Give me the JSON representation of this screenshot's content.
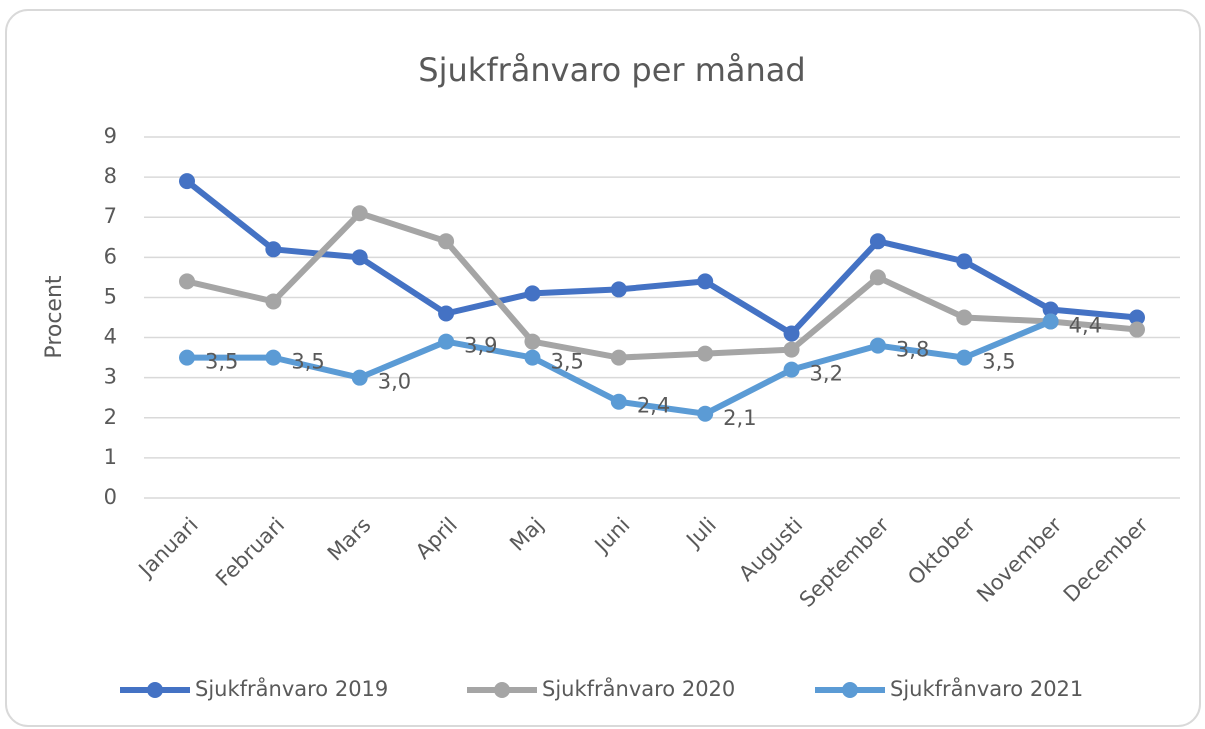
{
  "chart_data": {
    "type": "line",
    "title": "Sjukfrånvaro per månad",
    "y_label": "Procent",
    "categories": [
      "Januari",
      "Februari",
      "Mars",
      "April",
      "Maj",
      "Juni",
      "Juli",
      "Augusti",
      "September",
      "Oktober",
      "November",
      "December"
    ],
    "series": [
      {
        "name": "Sjukfrånvaro 2019",
        "color": "#4472c4",
        "values": [
          7.9,
          6.2,
          6.0,
          4.6,
          5.1,
          5.2,
          5.4,
          4.1,
          6.4,
          5.9,
          4.7,
          4.5
        ]
      },
      {
        "name": "Sjukfrånvaro 2020",
        "color": "#a5a5a5",
        "values": [
          5.4,
          4.9,
          7.1,
          6.4,
          3.9,
          3.5,
          3.6,
          3.7,
          5.5,
          4.5,
          4.4,
          4.2
        ]
      },
      {
        "name": "Sjukfrånvaro 2021",
        "color": "#5b9bd5",
        "values": [
          3.5,
          3.5,
          3.0,
          3.9,
          3.5,
          2.4,
          2.1,
          3.2,
          3.8,
          3.5,
          4.4,
          null
        ],
        "value_labels": [
          "3,5",
          "3,5",
          "3,0",
          "3,9",
          "3,5",
          "2,4",
          "2,1",
          "3,2",
          "3,8",
          "3,5",
          "4,4",
          null
        ]
      }
    ],
    "ylim": [
      0,
      9
    ],
    "yticks": [
      0,
      1,
      2,
      3,
      4,
      5,
      6,
      7,
      8,
      9
    ],
    "grid": true,
    "legend": "bottom"
  }
}
